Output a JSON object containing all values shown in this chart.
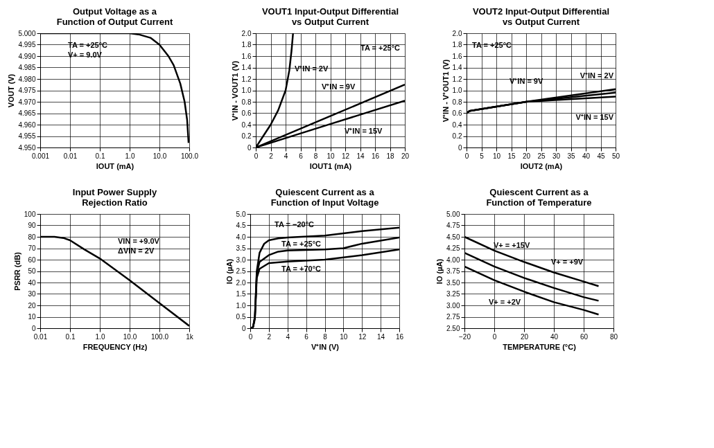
{
  "chart_data": [
    {
      "type": "line",
      "title": "Output Voltage as a\nFunction of Output Current",
      "xlabel": "IOUT (mA)",
      "ylabel": "VOUT (V)",
      "log": "x",
      "grid": true,
      "xlim": [
        0.001,
        100
      ],
      "xticks": [
        0.001,
        0.01,
        0.1,
        {
          "value": 1,
          "label": "1.0"
        },
        {
          "value": 10,
          "label": "10.0"
        },
        {
          "value": 100,
          "label": "100.0"
        }
      ],
      "ylim": [
        4.95,
        5.0
      ],
      "yticks": [
        {
          "value": 4.95,
          "label": "4.950"
        },
        4.955,
        {
          "value": 4.96,
          "label": "4.960"
        },
        4.965,
        {
          "value": 4.97,
          "label": "4.970"
        },
        4.975,
        {
          "value": 4.98,
          "label": "4.980"
        },
        4.985,
        {
          "value": 4.99,
          "label": "4.990"
        },
        4.995,
        {
          "value": 5.0,
          "label": "5.000"
        }
      ],
      "series": [
        {
          "color": "#000000",
          "x": [
            0.001,
            0.1,
            1,
            2,
            5,
            10,
            20,
            30,
            50,
            70,
            85,
            95
          ],
          "values": [
            5.0,
            5.0,
            5.0,
            4.9995,
            4.998,
            4.995,
            4.99,
            4.986,
            4.978,
            4.97,
            4.962,
            4.952
          ]
        }
      ],
      "annotations": [
        "TA = +25°C",
        "V+ = 9.0V"
      ]
    },
    {
      "type": "line",
      "title": "VOUT1 Input-Output Differential\nvs Output Current",
      "xlabel": "IOUT1 (mA)",
      "ylabel": "V⁺IN - VOUT1 (V)",
      "grid": true,
      "xlim": [
        0,
        20
      ],
      "xticks": [
        0,
        2,
        4,
        6,
        8,
        10,
        12,
        14,
        16,
        18,
        20
      ],
      "ylim": [
        0,
        2
      ],
      "yticks": [
        0,
        0.2,
        0.4,
        0.6,
        0.8,
        {
          "value": 1,
          "label": "1.0"
        },
        1.2,
        1.4,
        1.6,
        1.8,
        {
          "value": 2,
          "label": "2.0"
        }
      ],
      "series": [
        {
          "color": "#000000",
          "x": [
            0,
            1,
            2,
            3,
            4,
            4.5,
            4.8,
            5
          ],
          "values": [
            0,
            0.2,
            0.4,
            0.65,
            1.0,
            1.35,
            1.7,
            2.0
          ]
        },
        {
          "color": "#000000",
          "x": [
            0,
            10,
            20
          ],
          "values": [
            0,
            0.55,
            1.1
          ]
        },
        {
          "color": "#000000",
          "x": [
            0,
            10,
            20
          ],
          "values": [
            0,
            0.41,
            0.82
          ]
        }
      ],
      "annotations": [
        "TA = +25°C",
        "V⁺IN = 2V",
        "V⁺IN = 9V",
        "V⁺IN = 15V"
      ]
    },
    {
      "type": "line",
      "title": "VOUT2 Input-Output Differential\nvs Output Current",
      "xlabel": "IOUT2 (mA)",
      "ylabel": "V⁺IN - V⁺OUT1 (V)",
      "grid": true,
      "xlim": [
        0,
        50
      ],
      "xticks": [
        0,
        5,
        10,
        15,
        20,
        25,
        30,
        35,
        40,
        45,
        50
      ],
      "ylim": [
        0,
        2
      ],
      "yticks": [
        0,
        0.2,
        0.4,
        0.6,
        0.8,
        {
          "value": 1,
          "label": "1.0"
        },
        1.2,
        1.4,
        1.6,
        1.8,
        {
          "value": 2,
          "label": "2.0"
        }
      ],
      "series": [
        {
          "color": "#000000",
          "x": [
            0,
            1,
            20,
            50
          ],
          "values": [
            0.6,
            0.64,
            0.8,
            1.02
          ]
        },
        {
          "color": "#000000",
          "x": [
            0,
            1,
            20,
            50
          ],
          "values": [
            0.6,
            0.64,
            0.8,
            0.96
          ]
        },
        {
          "color": "#000000",
          "x": [
            0,
            1,
            20,
            50
          ],
          "values": [
            0.6,
            0.64,
            0.8,
            0.89
          ]
        }
      ],
      "annotations": [
        "TA = +25°C",
        "V⁺IN = 2V",
        "V⁺IN = 9V",
        "V⁺IN = 15V"
      ]
    },
    {
      "type": "line",
      "title": "Input Power Supply\nRejection Ratio",
      "xlabel": "FREQUENCY (Hz)",
      "ylabel": "PSRR (dB)",
      "log": "x",
      "grid": true,
      "xlim": [
        0.01,
        1000
      ],
      "xticks": [
        0.01,
        0.1,
        {
          "value": 1,
          "label": "1.0"
        },
        {
          "value": 10,
          "label": "10.0"
        },
        {
          "value": 100,
          "label": "100.0"
        },
        {
          "value": 1000,
          "label": "1k"
        }
      ],
      "ylim": [
        0,
        100
      ],
      "yticks": [
        0,
        10,
        20,
        30,
        40,
        50,
        60,
        70,
        80,
        90,
        100
      ],
      "series": [
        {
          "color": "#000000",
          "x": [
            0.01,
            0.03,
            0.06,
            0.1,
            0.3,
            1,
            10,
            100,
            1000
          ],
          "values": [
            80,
            80,
            79,
            77,
            69,
            61,
            42,
            22,
            2
          ]
        }
      ],
      "annotations": [
        "VIN = +9.0V",
        "ΔVIN = 2V"
      ]
    },
    {
      "type": "line",
      "title": "Quiescent Current as a\nFunction of Input Voltage",
      "xlabel": "V⁺IN (V)",
      "ylabel": "IO (µA)",
      "grid": true,
      "xlim": [
        0,
        16
      ],
      "xticks": [
        0,
        2,
        4,
        6,
        8,
        10,
        12,
        14,
        16
      ],
      "ylim": [
        0,
        5
      ],
      "yticks": [
        0,
        0.5,
        {
          "value": 1,
          "label": "1.0"
        },
        1.5,
        {
          "value": 2,
          "label": "2.0"
        },
        2.5,
        {
          "value": 3,
          "label": "3.0"
        },
        3.5,
        {
          "value": 4,
          "label": "4.0"
        },
        4.5,
        {
          "value": 5,
          "label": "5.0"
        }
      ],
      "series": [
        {
          "color": "#000000",
          "x": [
            0,
            0.3,
            0.5,
            0.7,
            1,
            1.5,
            2,
            3,
            4,
            8,
            12,
            16
          ],
          "values": [
            0,
            0.05,
            0.5,
            2.5,
            3.3,
            3.7,
            3.85,
            3.93,
            3.97,
            4.05,
            4.25,
            4.4
          ]
        },
        {
          "color": "#000000",
          "x": [
            0,
            0.3,
            0.5,
            0.7,
            1,
            2,
            3,
            4,
            8,
            10,
            12,
            16
          ],
          "values": [
            0,
            0.05,
            0.5,
            2.4,
            2.9,
            3.2,
            3.35,
            3.4,
            3.45,
            3.5,
            3.7,
            3.97
          ]
        },
        {
          "color": "#000000",
          "x": [
            0,
            0.3,
            0.5,
            0.7,
            1,
            2,
            4,
            8,
            12,
            16
          ],
          "values": [
            0,
            0.05,
            0.4,
            2.2,
            2.6,
            2.85,
            2.92,
            3.0,
            3.2,
            3.45
          ]
        }
      ],
      "annotations": [
        "TA = −20°C",
        "TA = +25°C",
        "TA = +70°C"
      ]
    },
    {
      "type": "line",
      "title": "Quiescent Current as a\nFunction of Temperature",
      "xlabel": "TEMPERATURE (°C)",
      "ylabel": "IO (µA)",
      "grid": true,
      "xlim": [
        -20,
        80
      ],
      "xticks": [
        {
          "value": -20,
          "label": "−20"
        },
        0,
        20,
        40,
        60,
        80
      ],
      "ylim": [
        2.5,
        5
      ],
      "yticks": [
        {
          "value": 2.5,
          "label": "2.50"
        },
        2.75,
        {
          "value": 3,
          "label": "3.00"
        },
        3.25,
        {
          "value": 3.5,
          "label": "3.50"
        },
        3.75,
        {
          "value": 4,
          "label": "4.00"
        },
        4.25,
        {
          "value": 4.5,
          "label": "4.50"
        },
        4.75,
        {
          "value": 5,
          "label": "5.00"
        }
      ],
      "series": [
        {
          "color": "#000000",
          "x": [
            -20,
            0,
            20,
            40,
            60,
            70
          ],
          "values": [
            4.5,
            4.2,
            3.95,
            3.72,
            3.52,
            3.42
          ]
        },
        {
          "color": "#000000",
          "x": [
            -20,
            0,
            20,
            40,
            60,
            70
          ],
          "values": [
            4.15,
            3.85,
            3.6,
            3.38,
            3.18,
            3.1
          ]
        },
        {
          "color": "#000000",
          "x": [
            -20,
            0,
            20,
            40,
            60,
            70
          ],
          "values": [
            3.85,
            3.55,
            3.3,
            3.07,
            2.9,
            2.8
          ]
        }
      ],
      "annotations": [
        "V+ = +15V",
        "V+ = +9V",
        "V+ = +2V"
      ]
    }
  ]
}
